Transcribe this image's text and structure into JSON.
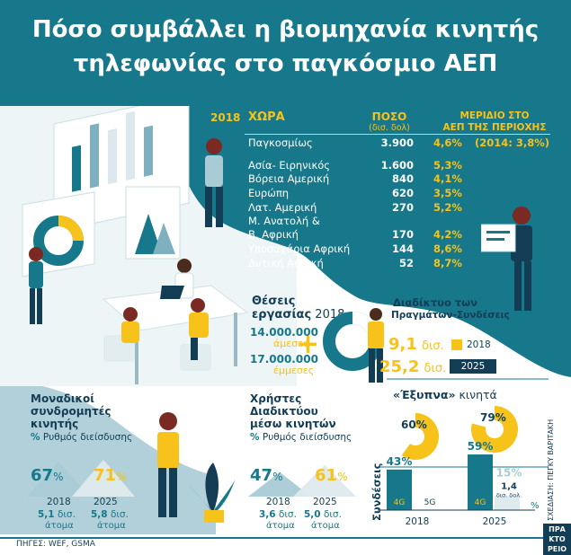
{
  "title_line1": "Πόσο συμβάλλει η βιομηχανία κινητής",
  "title_line2": "τηλεφωνίας στο παγκόσμιο ΑΕΠ",
  "gdp_table": {
    "year": "2018",
    "col_country": "ΧΩΡΑ",
    "col_value": "ΠΟΣΟ",
    "col_value_unit": "(δισ. δολ)",
    "col_share_line1": "ΜΕΡΙΔΙΟ ΣΤΟ",
    "col_share_line2": "ΑΕΠ ΤΗΣ ΠΕΡΙΟΧΗΣ",
    "rows": [
      {
        "country": "Παγκοσμίως",
        "value": "3.900",
        "share": "4,6%",
        "extra": "(2014: 3,8%)"
      },
      {
        "country": "Ασία- Ειρηνικός",
        "value": "1.600",
        "share": "5,3%"
      },
      {
        "country": "Βόρεια Αμερική",
        "value": "840",
        "share": "4,1%"
      },
      {
        "country": "Ευρώπη",
        "value": "620",
        "share": "3,5%"
      },
      {
        "country": "Λατ. Αμερική",
        "value": "270",
        "share": "5,2%"
      },
      {
        "country": "Μ. Ανατολή &",
        "value": "",
        "share": ""
      },
      {
        "country": "Β. Αφρική",
        "value": "170",
        "share": "4,2%"
      },
      {
        "country": "Υποσαχάρια Αφρική",
        "value": "144",
        "share": "8,6%"
      },
      {
        "country": "Δυτική Αφρική",
        "value": "52",
        "share": "8,7%"
      }
    ]
  },
  "jobs": {
    "title1": "Θέσεις",
    "title2": "εργασίας",
    "year": "2018",
    "direct_value": "14.000.000",
    "direct_label": "άμεσες",
    "indirect_value": "17.000.000",
    "indirect_label": "έμμεσες"
  },
  "iot": {
    "title1": "Διαδίκτυο των",
    "title2": "Πραγμάτων-Συνδέσεις",
    "v2018": "9,1",
    "v2025": "25,2",
    "unit": "δισ.",
    "year2018": "2018",
    "year2025": "2025"
  },
  "subscribers": {
    "title1": "Μοναδικοί",
    "title2": "συνδρομητές",
    "title3": "κινητής",
    "legend_symbol": "%",
    "legend_text": "Ρυθμός διείσδυσης",
    "p2018": "67",
    "p2025": "71",
    "pct": "%",
    "year2018": "2018",
    "year2025": "2025",
    "c2018": "5,1",
    "c2025": "5,8",
    "unit": "δισ.",
    "people": "άτομα"
  },
  "internet": {
    "title1": "Χρήστες",
    "title2": "Διαδικτύου",
    "title3": "μέσω κινητών",
    "legend_symbol": "%",
    "legend_text": "Ρυθμός διείσδυσης",
    "p2018": "47",
    "p2025": "61",
    "pct": "%",
    "year2018": "2018",
    "year2025": "2025",
    "c2018": "3,6",
    "c2025": "5,0",
    "unit": "δισ.",
    "people": "άτομα"
  },
  "smartphones": {
    "title": "«Έξυπνα»",
    "title_rest": "κινητά",
    "pie2018": "60%",
    "pie2025": "79%",
    "axis_label": "Συνδέσεις",
    "year2018": "2018",
    "year2025": "2025",
    "bar4g_2018": "43%",
    "bar4g_2025": "59%",
    "bar5g_2025": "15%",
    "label4g": "4G",
    "label5g": "5G",
    "pct_tail": "%",
    "fiveg_count": "1,4",
    "fiveg_unit": "δισ. δολ."
  },
  "sources": "ΠΗΓΕΣ: WEF, GSMA",
  "credit": "ΣΧΕΔΙΑΣΗ: ΠΕΓΚΥ ΒΑΡΙΤΑΚΗ",
  "logo": "ΠΡΑ ΚΤΟ ΡΕΙΟ",
  "colors": {
    "teal": "#16788a",
    "navy": "#133d55",
    "yellow": "#f7c21a",
    "pale": "#a9cbd6"
  },
  "chart_data": [
    {
      "type": "table",
      "title": "",
      "columns": [
        "ΧΩΡΑ",
        "ΠΟΣΟ (δισ. δολ)",
        "ΜΕΡΙΔΙΟ ΣΤΟ ΑΕΠ ΤΗΣ ΠΕΡΙΟΧΗΣ"
      ],
      "rows": [
        [
          "Παγκοσμίως",
          3900,
          4.6
        ],
        [
          "Ασία- Ειρηνικός",
          1600,
          5.3
        ],
        [
          "Βόρεια Αμερική",
          840,
          4.1
        ],
        [
          "Ευρώπη",
          620,
          3.5
        ],
        [
          "Λατ. Αμερική",
          270,
          5.2
        ],
        [
          "Μ. Ανατολή & Β. Αφρική",
          170,
          4.2
        ],
        [
          "Υποσαχάρια Αφρική",
          144,
          8.6
        ],
        [
          "Δυτική Αφρική",
          52,
          8.7
        ]
      ]
    },
    {
      "type": "bar",
      "title": "Διαδίκτυο των Πραγμάτων-Συνδέσεις",
      "categories": [
        "2018",
        "2025"
      ],
      "values": [
        9.1,
        25.2
      ]
    },
    {
      "type": "area",
      "title": "Μοναδικοί συνδρομητές κινητής",
      "categories": [
        "2018",
        "2025"
      ],
      "values": [
        67,
        71
      ],
      "counts": [
        5.1,
        5.8
      ]
    },
    {
      "type": "area",
      "title": "Χρήστες Διαδικτύου μέσω κινητών",
      "categories": [
        "2018",
        "2025"
      ],
      "values": [
        47,
        61
      ],
      "counts": [
        3.6,
        5.0
      ]
    },
    {
      "type": "pie",
      "title": "«Έξυπνα» κινητά",
      "categories": [
        "2018",
        "2025"
      ],
      "values": [
        60,
        79
      ]
    },
    {
      "type": "bar",
      "title": "Συνδέσεις",
      "categories": [
        "2018",
        "2025"
      ],
      "series": [
        {
          "name": "4G",
          "values": [
            43,
            59
          ]
        },
        {
          "name": "5G",
          "values": [
            null,
            15
          ]
        }
      ],
      "ylim": [
        0,
        100
      ]
    }
  ]
}
